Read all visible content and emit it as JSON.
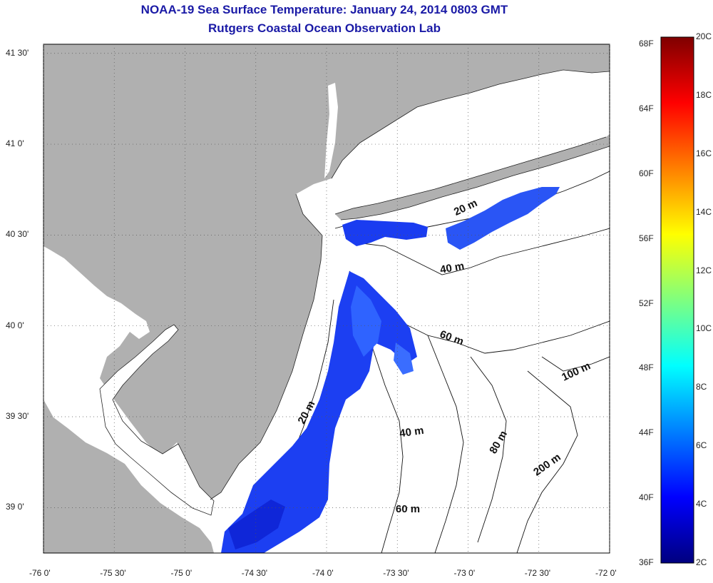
{
  "title": "NOAA-19 Sea Surface Temperature:  January 24, 2014 0803 GMT",
  "subtitle": "Rutgers Coastal Ocean Observation Lab",
  "map": {
    "lon_range": [
      -76.0,
      -72.0
    ],
    "lat_range": [
      38.75,
      41.55
    ],
    "grid": "dotted",
    "land_color": "#b0b0b0",
    "water_color": "#ffffff",
    "x_ticks": [
      {
        "value": -76.0,
        "label": "-76 0'"
      },
      {
        "value": -75.5,
        "label": "-75 30'"
      },
      {
        "value": -75.0,
        "label": "-75 0'"
      },
      {
        "value": -74.5,
        "label": "-74 30'"
      },
      {
        "value": -74.0,
        "label": "-74 0'"
      },
      {
        "value": -73.5,
        "label": "-73 30'"
      },
      {
        "value": -73.0,
        "label": "-73 0'"
      },
      {
        "value": -72.5,
        "label": "-72 30'"
      },
      {
        "value": -72.0,
        "label": "-72 0'"
      }
    ],
    "y_ticks": [
      {
        "value": 41.5,
        "label": "41 30'"
      },
      {
        "value": 41.0,
        "label": "41 0'"
      },
      {
        "value": 40.5,
        "label": "40 30'"
      },
      {
        "value": 40.0,
        "label": "40 0'"
      },
      {
        "value": 39.5,
        "label": "39 30'"
      },
      {
        "value": 39.0,
        "label": "39 0'"
      }
    ],
    "isobath_labels": [
      "20 m",
      "40 m",
      "60 m",
      "20 m",
      "40 m",
      "60 m",
      "80 m",
      "100 m",
      "200 m"
    ]
  },
  "colorbar": {
    "min_c": 2,
    "max_c": 20,
    "stops": [
      "#00007f",
      "#0000ff",
      "#007fff",
      "#00ffff",
      "#7fff7f",
      "#ffff00",
      "#ff7f00",
      "#ff0000",
      "#7f0000"
    ],
    "celsius_labels": [
      "20C",
      "18C",
      "16C",
      "14C",
      "12C",
      "10C",
      "8C",
      "6C",
      "4C",
      "2C"
    ],
    "fahrenheit_labels": [
      "68F",
      "64F",
      "60F",
      "56F",
      "52F",
      "48F",
      "44F",
      "40F",
      "36F"
    ]
  }
}
